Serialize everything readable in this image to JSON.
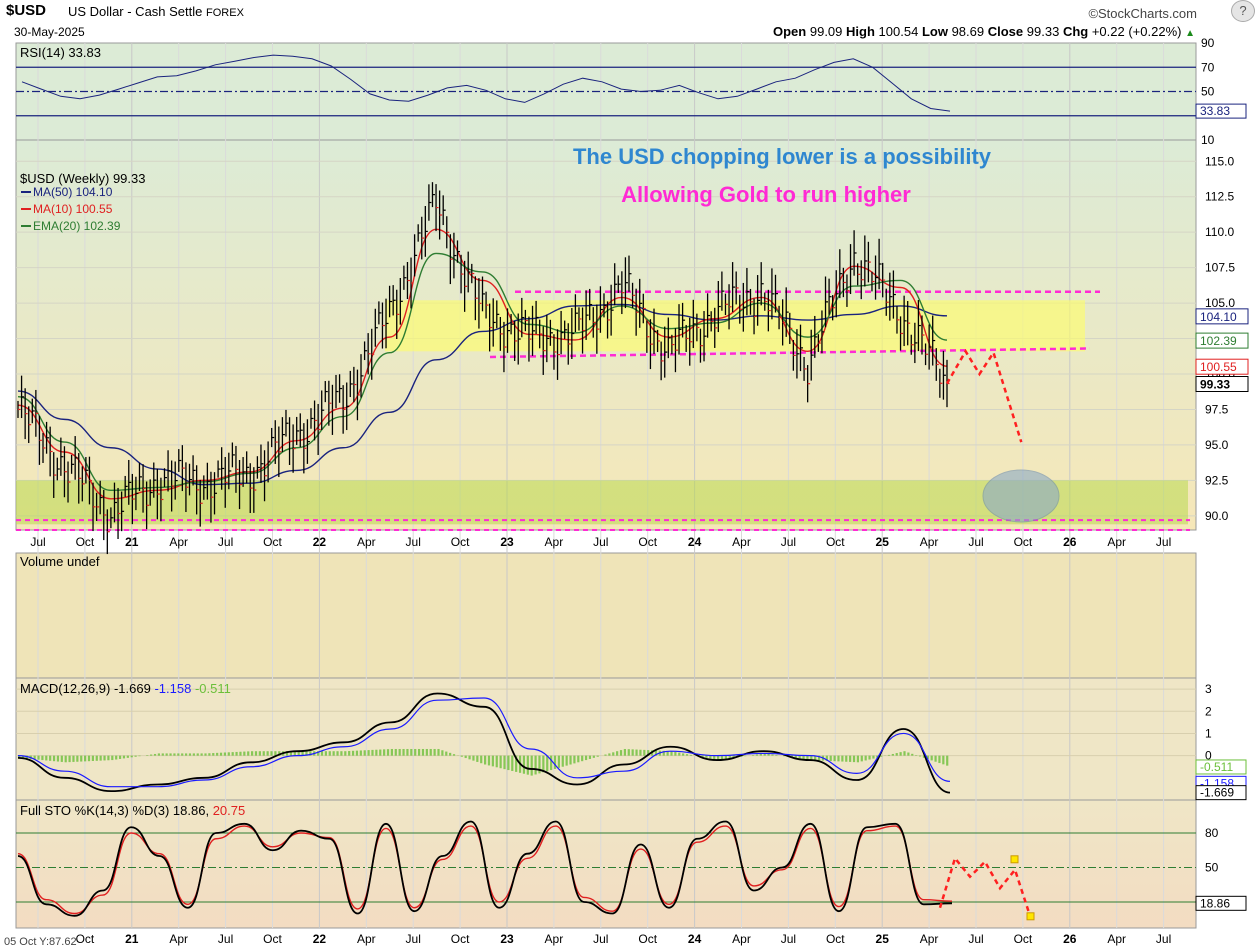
{
  "header": {
    "symbol": "$USD",
    "name": "US Dollar - Cash Settle",
    "exchange": "FOREX",
    "date": "30-May-2025",
    "brand": "©StockCharts.com",
    "open_label": "Open",
    "open": "99.09",
    "high_label": "High",
    "high": "100.54",
    "low_label": "Low",
    "low": "98.69",
    "close_label": "Close",
    "close": "99.33",
    "chg_label": "Chg",
    "chg": "+0.22 (+0.22%)",
    "help_glyph": "?"
  },
  "colors": {
    "ma50": "#1a237e",
    "ma10": "#e02020",
    "ema20": "#2e7d32",
    "annotation_blue": "#2f87d0",
    "annotation_pink": "#ff2ad4",
    "band_yellow": "#ffff66",
    "band_green": "#b8d84e"
  },
  "chart_data": [
    {
      "type": "line",
      "panel": "RSI",
      "title": "RSI(14) 33.83",
      "ylim": [
        10,
        90
      ],
      "y_ticks": [
        "90",
        "70",
        "50",
        "10"
      ],
      "reference_lines": [
        70,
        50,
        30
      ],
      "last_value_label": "33.83",
      "values": [
        58,
        52,
        46,
        44,
        47,
        52,
        57,
        62,
        63,
        67,
        72,
        75,
        78,
        80,
        79,
        77,
        71,
        60,
        48,
        43,
        42,
        47,
        53,
        55,
        51,
        44,
        41,
        48,
        56,
        61,
        58,
        52,
        50,
        51,
        55,
        49,
        44,
        46,
        52,
        58,
        61,
        68,
        74,
        77,
        70,
        57,
        44,
        36,
        33.83
      ]
    },
    {
      "type": "line",
      "panel": "price",
      "title": "$USD (Weekly) 99.33",
      "x_ticks": [
        "Jul",
        "Oct",
        "21",
        "Apr",
        "Jul",
        "Oct",
        "22",
        "Apr",
        "Jul",
        "Oct",
        "23",
        "Apr",
        "Jul",
        "Oct",
        "24",
        "Apr",
        "Jul",
        "Oct",
        "25",
        "Apr",
        "Jul",
        "Oct",
        "26",
        "Apr",
        "Jul"
      ],
      "y_ticks": [
        "115.0",
        "112.5",
        "110.0",
        "107.5",
        "105.0",
        "102.5",
        "100.0",
        "97.5",
        "95.0",
        "92.5",
        "90.0"
      ],
      "ylim": [
        89,
        116.5
      ],
      "x": [
        "Jun 20",
        "Sep 20",
        "Dec 20",
        "Mar 21",
        "Jun 21",
        "Sep 21",
        "Dec 21",
        "Mar 22",
        "Jun 22",
        "Sep 22",
        "Dec 22",
        "Mar 23",
        "Jun 23",
        "Sep 23",
        "Dec 23",
        "Mar 24",
        "Jun 24",
        "Sep 24",
        "Dec 24",
        "Mar 25",
        "May 25"
      ],
      "series": [
        {
          "name": "$USD",
          "values": [
            97.5,
            93.5,
            90.2,
            92.5,
            92.3,
            93.0,
            95.8,
            98.2,
            104.2,
            112.0,
            104.2,
            102.6,
            102.8,
            106.2,
            101.5,
            104.3,
            105.9,
            100.8,
            108.4,
            104.3,
            99.33
          ]
        },
        {
          "name": "MA(50) 104.10",
          "values": [
            98.8,
            96.8,
            94.8,
            93.3,
            92.2,
            92.3,
            93.2,
            94.8,
            97.3,
            101.0,
            103.0,
            103.9,
            104.8,
            104.9,
            104.2,
            103.8,
            104.1,
            103.8,
            104.2,
            104.8,
            104.1
          ]
        },
        {
          "name": "MA(10) 100.55",
          "values": [
            97.8,
            94.5,
            91.2,
            91.8,
            92.5,
            93.1,
            95.3,
            97.6,
            102.6,
            110.2,
            106.6,
            102.8,
            102.4,
            105.4,
            102.6,
            103.9,
            105.4,
            101.6,
            107.6,
            106.1,
            100.55
          ]
        },
        {
          "name": "EMA(20) 102.39",
          "values": [
            98.4,
            95.2,
            91.8,
            92.0,
            92.4,
            93.0,
            94.8,
            97.0,
            101.5,
            108.5,
            107.2,
            103.5,
            102.9,
            104.8,
            103.2,
            103.6,
            105.0,
            102.6,
            106.2,
            106.6,
            102.39
          ]
        }
      ],
      "last_value_labels": [
        "104.10",
        "102.39",
        "100.55",
        "99.33"
      ],
      "projection": [
        [
          20.0,
          99.33
        ],
        [
          20.4,
          101.6
        ],
        [
          20.7,
          100.0
        ],
        [
          21.0,
          101.5
        ],
        [
          21.6,
          95.2
        ]
      ],
      "annotations": [
        "The USD chopping lower is a possibility",
        "Allowing Gold to run higher"
      ]
    },
    {
      "type": "bar",
      "panel": "volume",
      "title": "Volume undef"
    },
    {
      "type": "line",
      "panel": "MACD",
      "title": "MACD(12,26,9)",
      "title_values": [
        "-1.669",
        "-1.158",
        "-0.511"
      ],
      "y_ticks": [
        "3",
        "2",
        "1",
        "0"
      ],
      "ylim": [
        -2,
        3.5
      ],
      "last_value_labels": [
        "-0.511",
        "-1.158",
        "-1.669"
      ],
      "series": [
        {
          "name": "MACD",
          "values": [
            -0.1,
            -1.0,
            -1.6,
            -1.3,
            -1.0,
            -0.3,
            0.2,
            0.6,
            1.5,
            2.8,
            2.2,
            -0.6,
            -1.3,
            -0.4,
            0.4,
            -0.2,
            0.2,
            -0.2,
            -1.1,
            1.2,
            -1.669
          ]
        },
        {
          "name": "Signal",
          "values": [
            0.0,
            -0.7,
            -1.4,
            -1.4,
            -1.1,
            -0.5,
            0.0,
            0.4,
            1.2,
            2.5,
            2.6,
            0.3,
            -1.0,
            -0.7,
            0.2,
            0.0,
            0.1,
            0.0,
            -0.8,
            1.0,
            -1.158
          ]
        },
        {
          "name": "Histogram",
          "values": [
            -0.1,
            -0.3,
            -0.2,
            0.1,
            0.1,
            0.2,
            0.2,
            0.2,
            0.3,
            0.3,
            -0.4,
            -0.9,
            -0.3,
            0.3,
            0.2,
            -0.2,
            0.1,
            -0.2,
            -0.3,
            0.2,
            -0.511
          ]
        }
      ]
    },
    {
      "type": "line",
      "panel": "STO",
      "title": "Full STO %K(14,3) %D(3) 18.86,",
      "title_value2": "20.75",
      "y_ticks": [
        "80",
        "50"
      ],
      "ylim": [
        0,
        100
      ],
      "reference_lines": [
        80,
        50,
        20
      ],
      "last_value_label": "18.86",
      "series": [
        {
          "name": "%K",
          "values": [
            60,
            18,
            8,
            30,
            85,
            60,
            15,
            80,
            88,
            65,
            82,
            75,
            10,
            88,
            12,
            60,
            90,
            15,
            62,
            90,
            20,
            10,
            70,
            15,
            75,
            90,
            30,
            50,
            88,
            12,
            85,
            88,
            18,
            18.86
          ]
        },
        {
          "name": "%D",
          "values": [
            62,
            22,
            10,
            26,
            80,
            62,
            18,
            75,
            86,
            68,
            80,
            76,
            14,
            84,
            15,
            57,
            86,
            20,
            58,
            86,
            24,
            12,
            66,
            18,
            72,
            86,
            34,
            48,
            84,
            16,
            82,
            86,
            22,
            20.75
          ]
        }
      ],
      "projection": [
        [
          0,
          15
        ],
        [
          1,
          58
        ],
        [
          2,
          42
        ],
        [
          3,
          55
        ],
        [
          4,
          32
        ],
        [
          5,
          48
        ],
        [
          6,
          8
        ]
      ]
    }
  ],
  "x_first_label": "05 Oct Y:87.62"
}
